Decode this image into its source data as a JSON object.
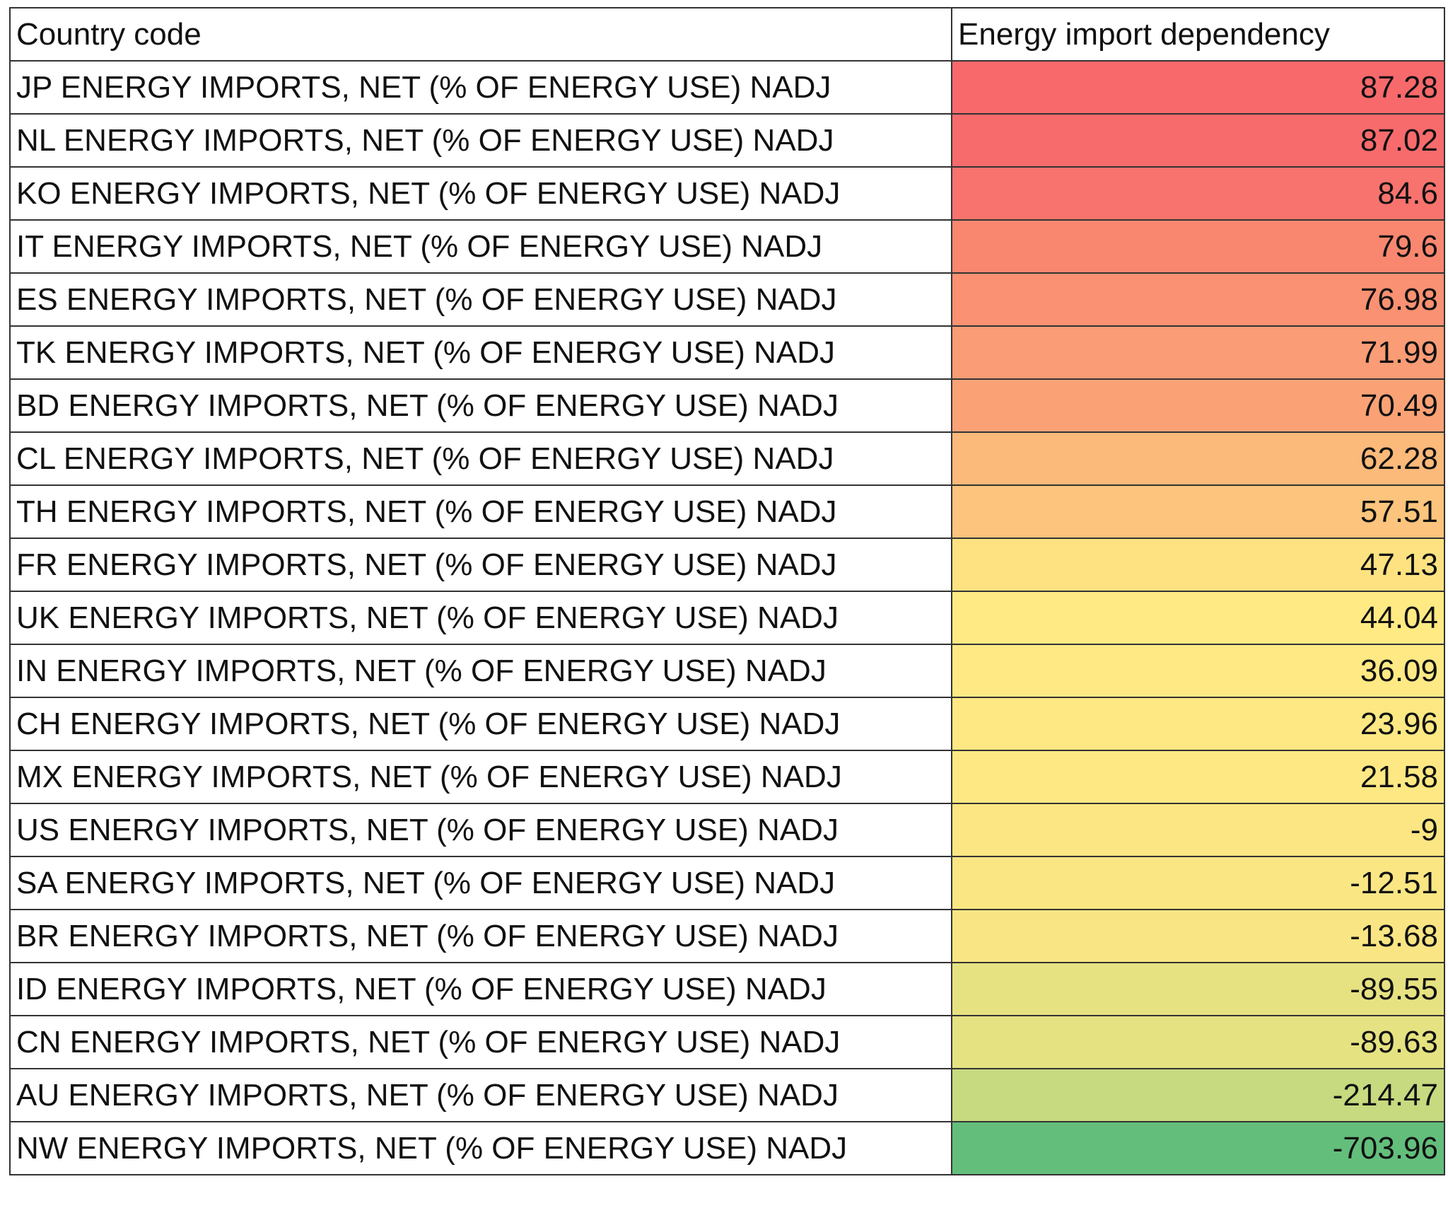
{
  "table": {
    "header": [
      "Country code",
      "Energy import dependency"
    ],
    "rows": [
      [
        "JP ENERGY IMPORTS, NET (% OF ENERGY USE) NADJ",
        87.28
      ],
      [
        "NL ENERGY IMPORTS, NET (% OF ENERGY USE) NADJ",
        87.02
      ],
      [
        "KO ENERGY IMPORTS, NET (% OF ENERGY USE) NADJ",
        84.6
      ],
      [
        "IT ENERGY IMPORTS, NET (% OF ENERGY USE) NADJ",
        79.6
      ],
      [
        "ES ENERGY IMPORTS, NET (% OF ENERGY USE) NADJ",
        76.98
      ],
      [
        "TK ENERGY IMPORTS, NET (% OF ENERGY USE) NADJ",
        71.99
      ],
      [
        "BD ENERGY IMPORTS, NET (% OF ENERGY USE) NADJ",
        70.49
      ],
      [
        "CL ENERGY IMPORTS, NET (% OF ENERGY USE) NADJ",
        62.28
      ],
      [
        "TH ENERGY IMPORTS, NET (% OF ENERGY USE) NADJ",
        57.51
      ],
      [
        "FR ENERGY IMPORTS, NET (% OF ENERGY USE) NADJ",
        47.13
      ],
      [
        "UK ENERGY IMPORTS, NET (% OF ENERGY USE) NADJ",
        44.04
      ],
      [
        "IN ENERGY IMPORTS, NET (% OF ENERGY USE) NADJ",
        36.09
      ],
      [
        "CH ENERGY IMPORTS, NET (% OF ENERGY USE) NADJ",
        23.96
      ],
      [
        "MX ENERGY IMPORTS, NET (% OF ENERGY USE) NADJ",
        21.58
      ],
      [
        "US ENERGY IMPORTS, NET (% OF ENERGY USE) NADJ",
        -9
      ],
      [
        "SA ENERGY IMPORTS, NET (% OF ENERGY USE) NADJ",
        -12.51
      ],
      [
        "BR ENERGY IMPORTS, NET (% OF ENERGY USE) NADJ",
        -13.68
      ],
      [
        "ID ENERGY IMPORTS, NET (% OF ENERGY USE) NADJ",
        -89.55
      ],
      [
        "CN ENERGY IMPORTS, NET (% OF ENERGY USE) NADJ",
        -89.63
      ],
      [
        "AU ENERGY IMPORTS, NET (% OF ENERGY USE) NADJ",
        -214.47
      ],
      [
        "NW ENERGY IMPORTS, NET (% OF ENERGY USE) NADJ",
        -703.96
      ]
    ],
    "value_colors": [
      "#f8696b",
      "#f86b6c",
      "#f8736d",
      "#f98770",
      "#f99172",
      "#fa9c75",
      "#faa276",
      "#fbb97a",
      "#fcc47c",
      "#fee282",
      "#ffea84",
      "#fee984",
      "#fde883",
      "#fde883",
      "#fbe683",
      "#fae683",
      "#f9e583",
      "#e6e282",
      "#e5e282",
      "#c7da80",
      "#63be7b"
    ]
  }
}
